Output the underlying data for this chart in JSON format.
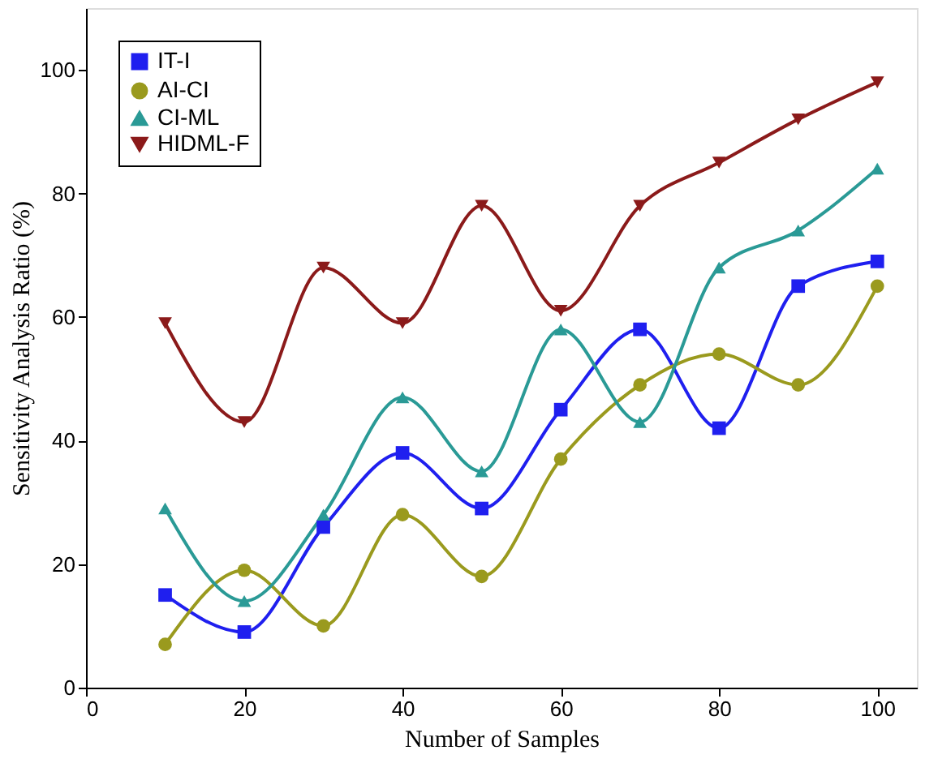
{
  "chart_data": {
    "type": "line",
    "xlabel": "Number of Samples",
    "ylabel": "Sensitivity Analysis Ratio (%)",
    "x": [
      10,
      20,
      30,
      40,
      50,
      60,
      70,
      80,
      90,
      100
    ],
    "series": [
      {
        "name": "IT-I",
        "color": "#1f1fef",
        "marker": "square",
        "values": [
          15,
          9,
          26,
          38,
          29,
          45,
          58,
          42,
          65,
          69
        ]
      },
      {
        "name": "AI-CI",
        "color": "#9a9a1e",
        "marker": "circle",
        "values": [
          7,
          19,
          10,
          28,
          18,
          37,
          49,
          54,
          49,
          65
        ]
      },
      {
        "name": "CI-ML",
        "color": "#2a9a96",
        "marker": "triangle",
        "values": [
          29,
          14,
          28,
          47,
          35,
          58,
          43,
          68,
          74,
          84
        ]
      },
      {
        "name": "HIDML-F",
        "color": "#8b1a1a",
        "marker": "triangle-down",
        "values": [
          59,
          43,
          68,
          59,
          78,
          61,
          78,
          85,
          92,
          98
        ]
      }
    ],
    "xlim": [
      0,
      105
    ],
    "xticks": [
      0,
      20,
      40,
      60,
      80,
      100
    ],
    "ylim": [
      0,
      110
    ],
    "yticks": [
      0,
      20,
      40,
      60,
      80,
      100
    ],
    "grid": false,
    "legend": "top left",
    "line_style": "solid"
  }
}
